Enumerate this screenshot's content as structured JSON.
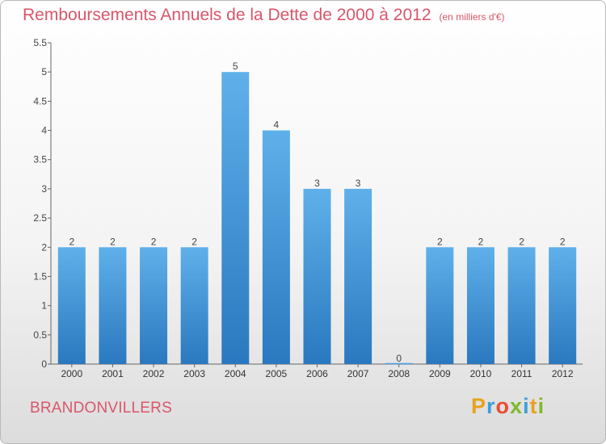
{
  "chart_data": {
    "type": "bar",
    "title": "Remboursements Annuels de la Dette de 2000 à 2012",
    "subtitle": "(en milliers d'€)",
    "categories": [
      "2000",
      "2001",
      "2002",
      "2003",
      "2004",
      "2005",
      "2006",
      "2007",
      "2008",
      "2009",
      "2010",
      "2011",
      "2012"
    ],
    "values": [
      2,
      2,
      2,
      2,
      5,
      4,
      3,
      3,
      0,
      2,
      2,
      2,
      2
    ],
    "data_labels": [
      "2",
      "2",
      "2",
      "2",
      "5",
      "4",
      "3",
      "3",
      "0",
      "2",
      "2",
      "2",
      "2"
    ],
    "ylim": [
      0,
      5.5
    ],
    "yticks": [
      0,
      0.5,
      1,
      1.5,
      2,
      2.5,
      3,
      3.5,
      4,
      4.5,
      5,
      5.5
    ],
    "ytick_labels": [
      "0",
      "0.5",
      "1",
      "1.5",
      "2",
      "2.5",
      "3",
      "3.5",
      "4",
      "4.5",
      "5",
      "5.5"
    ],
    "grid": false,
    "bar_color": "#3a8fd6"
  },
  "footer": {
    "town": "BRANDONVILLERS",
    "logo_letters": [
      "P",
      "r",
      "o",
      "x",
      "i",
      "t",
      "i"
    ],
    "logo_colors": [
      "#e8a21c",
      "#3c9fd8",
      "#e94d2f",
      "#7fb82e",
      "#3c9fd8",
      "#e8a21c",
      "#7fb82e"
    ]
  },
  "colors": {
    "title": "#d9566a",
    "axis": "#444444"
  }
}
